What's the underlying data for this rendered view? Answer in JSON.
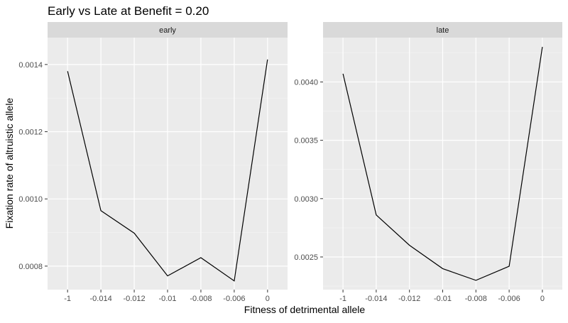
{
  "chart_data": {
    "type": "line",
    "title": "Early vs Late at Benefit = 0.20",
    "xlabel": "Fitness of detrimental allele",
    "ylabel": "Fixation rate of altruistic allele",
    "x_categories": [
      "-1",
      "-0.014",
      "-0.012",
      "-0.01",
      "-0.008",
      "-0.006",
      "0"
    ],
    "grid": true,
    "panels": [
      {
        "strip_label": "early",
        "ylim": [
          0.00073,
          0.00148
        ],
        "y_ticks": [
          0.0008,
          0.001,
          0.0012,
          0.0014
        ],
        "y_tick_labels": [
          "0.0008",
          "0.0010",
          "0.0012",
          "0.0014"
        ],
        "series": [
          {
            "values": [
              0.00138,
              0.000965,
              0.000898,
              0.000771,
              0.000825,
              0.000756,
              0.001415
            ]
          }
        ]
      },
      {
        "strip_label": "late",
        "ylim": [
          0.00222,
          0.00438
        ],
        "y_ticks": [
          0.0025,
          0.003,
          0.0035,
          0.004
        ],
        "y_tick_labels": [
          "0.0025",
          "0.0030",
          "0.0035",
          "0.0040"
        ],
        "series": [
          {
            "values": [
              0.00407,
              0.00286,
              0.0026,
              0.0024,
              0.0023,
              0.00242,
              0.0043
            ]
          }
        ]
      }
    ]
  }
}
